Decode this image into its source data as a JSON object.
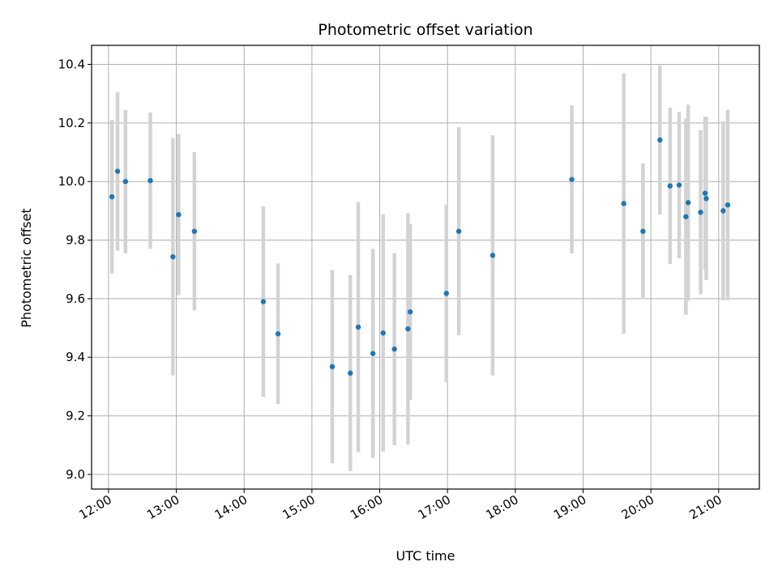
{
  "chart_data": {
    "type": "scatter",
    "title": "Photometric offset variation",
    "xlabel": "UTC time",
    "ylabel": "Photometric offset",
    "grid": true,
    "xlim": [
      "11:45",
      "21:36"
    ],
    "ylim": [
      8.95,
      10.465
    ],
    "x_ticks": [
      "12:00",
      "13:00",
      "14:00",
      "15:00",
      "16:00",
      "17:00",
      "18:00",
      "19:00",
      "20:00",
      "21:00"
    ],
    "y_ticks": [
      9.0,
      9.2,
      9.4,
      9.6,
      9.8,
      10.0,
      10.2,
      10.4
    ],
    "y_tick_labels": [
      "9.0",
      "9.2",
      "9.4",
      "9.6",
      "9.8",
      "10.0",
      "10.2",
      "10.4"
    ],
    "marker_color": "#1f77b4",
    "errorbar_color": "#d3d3d3",
    "points": [
      {
        "x": "12:03",
        "y": 9.948,
        "err": 0.262
      },
      {
        "x": "12:08",
        "y": 10.035,
        "err": 0.27
      },
      {
        "x": "12:15",
        "y": 10.0,
        "err": 0.245
      },
      {
        "x": "12:37",
        "y": 10.003,
        "err": 0.233
      },
      {
        "x": "12:57",
        "y": 9.743,
        "err": 0.405
      },
      {
        "x": "13:02",
        "y": 9.887,
        "err": 0.275
      },
      {
        "x": "13:16",
        "y": 9.83,
        "err": 0.27
      },
      {
        "x": "14:17",
        "y": 9.59,
        "err": 0.325
      },
      {
        "x": "14:30",
        "y": 9.48,
        "err": 0.24
      },
      {
        "x": "15:18",
        "y": 9.368,
        "err": 0.33
      },
      {
        "x": "15:34",
        "y": 9.346,
        "err": 0.335
      },
      {
        "x": "15:41",
        "y": 9.503,
        "err": 0.427
      },
      {
        "x": "15:54",
        "y": 9.413,
        "err": 0.357
      },
      {
        "x": "16:03",
        "y": 9.483,
        "err": 0.405
      },
      {
        "x": "16:13",
        "y": 9.428,
        "err": 0.328
      },
      {
        "x": "16:25",
        "y": 9.497,
        "err": 0.395
      },
      {
        "x": "16:27",
        "y": 9.555,
        "err": 0.3
      },
      {
        "x": "16:59",
        "y": 9.618,
        "err": 0.303
      },
      {
        "x": "17:10",
        "y": 9.83,
        "err": 0.355
      },
      {
        "x": "17:40",
        "y": 9.748,
        "err": 0.41
      },
      {
        "x": "18:50",
        "y": 10.007,
        "err": 0.253
      },
      {
        "x": "19:36",
        "y": 9.925,
        "err": 0.445
      },
      {
        "x": "19:53",
        "y": 9.83,
        "err": 0.232
      },
      {
        "x": "20:08",
        "y": 10.142,
        "err": 0.255
      },
      {
        "x": "20:17",
        "y": 9.985,
        "err": 0.267
      },
      {
        "x": "20:25",
        "y": 9.988,
        "err": 0.25
      },
      {
        "x": "20:31",
        "y": 9.88,
        "err": 0.335
      },
      {
        "x": "20:33",
        "y": 9.928,
        "err": 0.335
      },
      {
        "x": "20:44",
        "y": 9.895,
        "err": 0.28
      },
      {
        "x": "20:48",
        "y": 9.96,
        "err": 0.262
      },
      {
        "x": "20:49",
        "y": 9.942,
        "err": 0.278
      },
      {
        "x": "21:04",
        "y": 9.9,
        "err": 0.305
      },
      {
        "x": "21:08",
        "y": 9.92,
        "err": 0.325
      }
    ]
  }
}
